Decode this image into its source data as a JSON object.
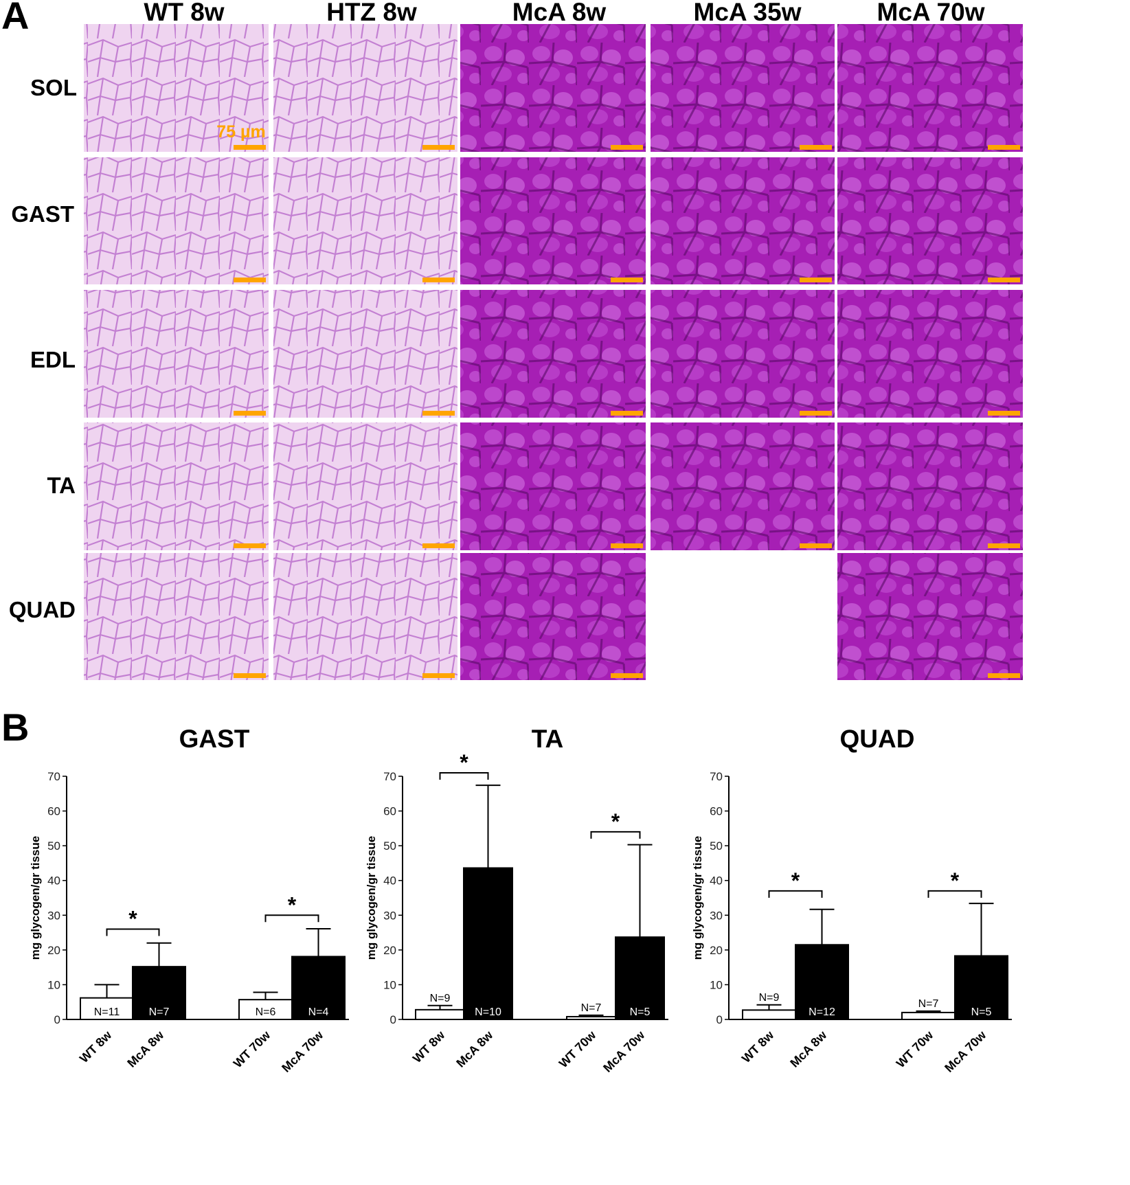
{
  "panel_a": {
    "label": "A",
    "columns": [
      "WT 8w",
      "HTZ 8w",
      "McA 8w",
      "McA 35w",
      "McA 70w"
    ],
    "rows": [
      "SOL",
      "GAST",
      "EDL",
      "TA",
      "QUAD"
    ],
    "scale_bar_label": "75 µm",
    "scale_bar_color": "#FFA500",
    "stain_colors": {
      "light": "#efd4f0",
      "light_border": "#b464c8",
      "dark": "#a61fb4",
      "dark_border": "#5a0a68"
    },
    "missing_images": [
      {
        "row": "QUAD",
        "column": "McA 35w"
      }
    ]
  },
  "panel_b": {
    "label": "B"
  },
  "chart_data": [
    {
      "type": "bar",
      "title": "GAST",
      "ylabel": "mg glycogen/gr tissue",
      "ylim": [
        0,
        70
      ],
      "yticks": [
        0,
        10,
        20,
        30,
        40,
        50,
        60,
        70
      ],
      "categories": [
        "WT 8w",
        "McA 8w",
        "WT 70w",
        "McA 70w"
      ],
      "values": [
        6.2,
        15.2,
        5.7,
        18.1
      ],
      "errors": [
        3.8,
        6.8,
        2.1,
        8.0
      ],
      "n_labels": [
        "N=11",
        "N=7",
        "N=6",
        "N=4"
      ],
      "bar_colors": [
        "#ffffff",
        "#000000",
        "#ffffff",
        "#000000"
      ],
      "significance": [
        {
          "pair": [
            0,
            1
          ],
          "y": 26,
          "label": "*"
        },
        {
          "pair": [
            2,
            3
          ],
          "y": 30,
          "label": "*"
        }
      ]
    },
    {
      "type": "bar",
      "title": "TA",
      "ylabel": "mg glycogen/gr tissue",
      "ylim": [
        0,
        70
      ],
      "yticks": [
        0,
        10,
        20,
        30,
        40,
        50,
        60,
        70
      ],
      "categories": [
        "WT 8w",
        "McA 8w",
        "WT 70w",
        "McA 70w"
      ],
      "values": [
        2.8,
        43.6,
        0.8,
        23.7
      ],
      "errors": [
        1.2,
        23.8,
        0.4,
        26.6
      ],
      "n_labels": [
        "N=9",
        "N=10",
        "N=7",
        "N=5"
      ],
      "bar_colors": [
        "#ffffff",
        "#000000",
        "#ffffff",
        "#000000"
      ],
      "significance": [
        {
          "pair": [
            0,
            1
          ],
          "y": 71,
          "label": "*"
        },
        {
          "pair": [
            2,
            3
          ],
          "y": 54,
          "label": "*"
        }
      ]
    },
    {
      "type": "bar",
      "title": "QUAD",
      "ylabel": "mg glycogen/gr tissue",
      "ylim": [
        0,
        70
      ],
      "yticks": [
        0,
        10,
        20,
        30,
        40,
        50,
        60,
        70
      ],
      "categories": [
        "WT 8w",
        "McA 8w",
        "WT 70w",
        "McA 70w"
      ],
      "values": [
        2.7,
        21.5,
        2.0,
        18.3
      ],
      "errors": [
        1.5,
        10.2,
        0.4,
        15.1
      ],
      "n_labels": [
        "N=9",
        "N=12",
        "N=7",
        "N=5"
      ],
      "bar_colors": [
        "#ffffff",
        "#000000",
        "#ffffff",
        "#000000"
      ],
      "significance": [
        {
          "pair": [
            0,
            1
          ],
          "y": 37,
          "label": "*"
        },
        {
          "pair": [
            2,
            3
          ],
          "y": 37,
          "label": "*"
        }
      ]
    }
  ]
}
